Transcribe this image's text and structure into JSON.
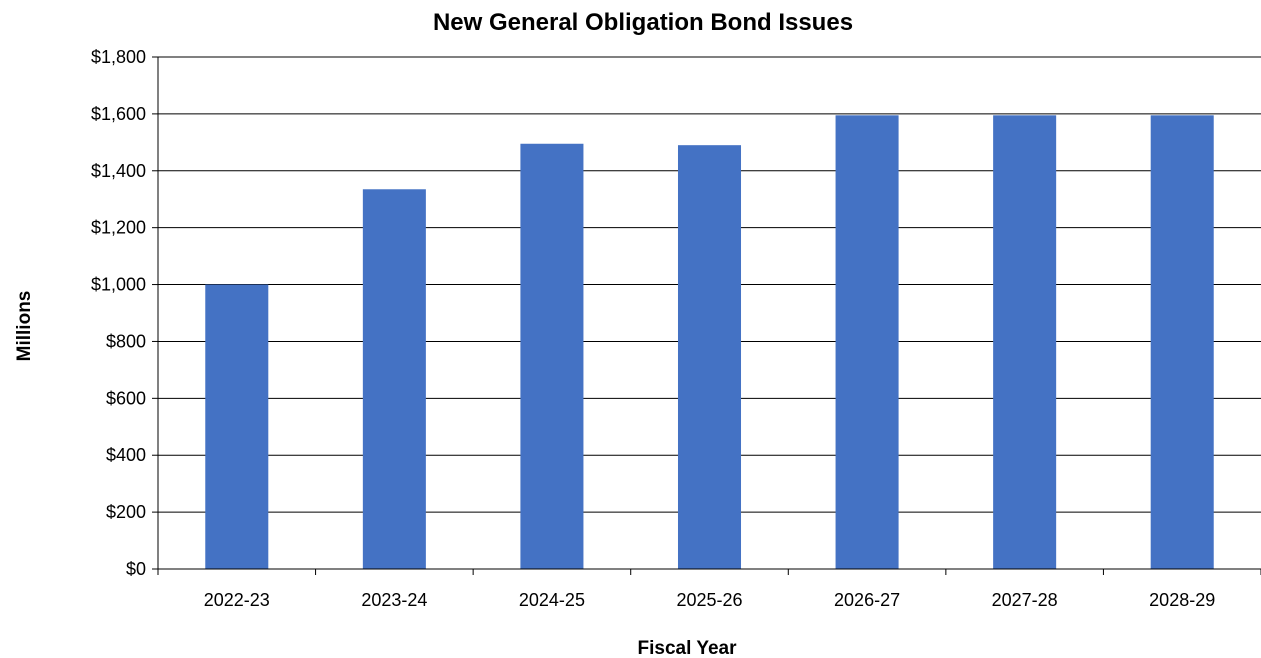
{
  "chart_data": {
    "type": "bar",
    "title": "New General Obligation Bond Issues",
    "xlabel": "Fiscal Year",
    "ylabel": "Millions",
    "categories": [
      "2022-23",
      "2023-24",
      "2024-25",
      "2025-26",
      "2026-27",
      "2027-28",
      "2028-29"
    ],
    "values": [
      1000,
      1335,
      1495,
      1490,
      1595,
      1595,
      1595
    ],
    "ylim": [
      0,
      1800
    ],
    "yticks": [
      0,
      200,
      400,
      600,
      800,
      1000,
      1200,
      1400,
      1600,
      1800
    ],
    "ytick_labels": [
      "$0",
      "$200",
      "$400",
      "$600",
      "$800",
      "$1,000",
      "$1,200",
      "$1,400",
      "$1,600",
      "$1,800"
    ],
    "grid": true,
    "bar_color": "#4472C4"
  }
}
